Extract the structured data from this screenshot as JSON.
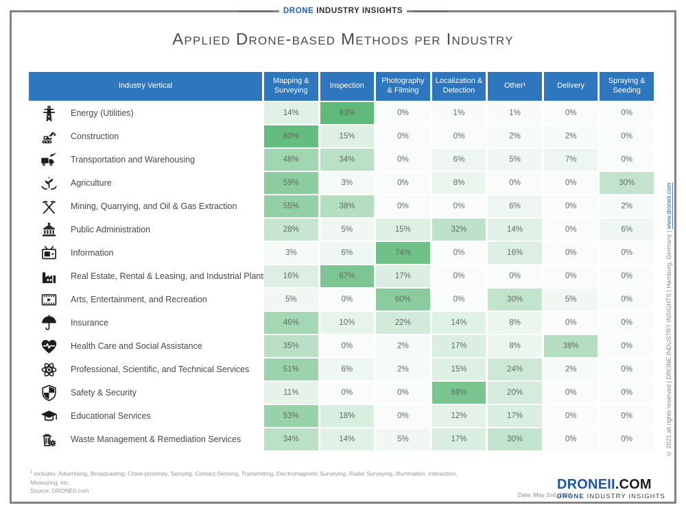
{
  "banner": {
    "drone": "DRONE",
    "rest": " INDUSTRY INSIGHTS"
  },
  "title": "Applied Drone-based Methods per Industry",
  "colors": {
    "header_blue": "#2e76be",
    "brand_blue": "#1a57a8",
    "heat_low": "#fafcfb",
    "heat_high": "#3fac60"
  },
  "chart_data": {
    "type": "heatmap",
    "title": "Applied Drone-based Methods per Industry",
    "value_format": "percent",
    "value_range": [
      0,
      100
    ],
    "columns": [
      "Industry Vertical",
      "Mapping & Surveying",
      "Inspection",
      "Photography & Filming",
      "Localization & Detection",
      "Other¹",
      "Delivery",
      "Spraying & Seeding"
    ],
    "rows": [
      {
        "icon": "power-tower-icon",
        "label": "Energy (Utilities)",
        "values": [
          14,
          83,
          0,
          1,
          1,
          0,
          0
        ]
      },
      {
        "icon": "excavator-icon",
        "label": "Construction",
        "values": [
          80,
          15,
          0,
          0,
          2,
          2,
          0
        ]
      },
      {
        "icon": "truck-plane-icon",
        "label": "Transportation and Warehousing",
        "values": [
          48,
          34,
          0,
          6,
          5,
          7,
          0
        ]
      },
      {
        "icon": "plant-hands-icon",
        "label": "Agriculture",
        "values": [
          59,
          3,
          0,
          8,
          0,
          0,
          30
        ]
      },
      {
        "icon": "crossed-hammers-icon",
        "label": "Mining, Quarrying, and Oil & Gas Extraction",
        "values": [
          55,
          38,
          0,
          0,
          6,
          0,
          2
        ]
      },
      {
        "icon": "government-building-icon",
        "label": "Public Administration",
        "values": [
          28,
          5,
          15,
          32,
          14,
          0,
          6
        ]
      },
      {
        "icon": "tv-icon",
        "label": "Information",
        "values": [
          3,
          6,
          74,
          0,
          16,
          0,
          0
        ]
      },
      {
        "icon": "factory-icon",
        "label": "Real Estate, Rental & Leasing, and Industrial Plants",
        "values": [
          16,
          67,
          17,
          0,
          0,
          0,
          0
        ]
      },
      {
        "icon": "film-strip-icon",
        "label": "Arts, Entertainment, and Recreation",
        "values": [
          5,
          0,
          60,
          0,
          30,
          5,
          0
        ]
      },
      {
        "icon": "umbrella-icon",
        "label": "Insurance",
        "values": [
          46,
          10,
          22,
          14,
          8,
          0,
          0
        ]
      },
      {
        "icon": "heart-pulse-icon",
        "label": "Health Care and Social Assistance",
        "values": [
          35,
          0,
          2,
          17,
          8,
          38,
          0
        ]
      },
      {
        "icon": "atom-icon",
        "label": "Professional, Scientific, and Technical Services",
        "values": [
          51,
          6,
          2,
          15,
          24,
          2,
          0
        ]
      },
      {
        "icon": "shield-icon",
        "label": "Safety & Security",
        "values": [
          11,
          0,
          0,
          69,
          20,
          0,
          0
        ]
      },
      {
        "icon": "graduation-cap-icon",
        "label": "Educational Services",
        "values": [
          53,
          18,
          0,
          12,
          17,
          0,
          0
        ]
      },
      {
        "icon": "trash-gear-icon",
        "label": "Waste Management & Remediation Services",
        "values": [
          34,
          14,
          5,
          17,
          30,
          0,
          0
        ]
      }
    ]
  },
  "side_note": {
    "text": "© 2021 all rights reserved | DRONE INDUSTRY INSIGHTS | Hamburg, Germany | ",
    "link": "www.droneii.com"
  },
  "footer": {
    "footnote_mark": "1",
    "footnote_text": " includes: Advertising, Broadcasting, Close-proximity, Sensing, Contact-Sensing, Transmitting, Electromagnetic Surveying, Radar Surveying, Illumination, Interaction, Measuring, etc.",
    "source": "Source: DRONEII.com",
    "date": "Date: May 2nd, 2021"
  },
  "logo": {
    "droneii": "DRONEII",
    "com": ".COM",
    "sub_drone": "DRONE",
    "sub_rest": " INDUSTRY INSIGHTS"
  }
}
